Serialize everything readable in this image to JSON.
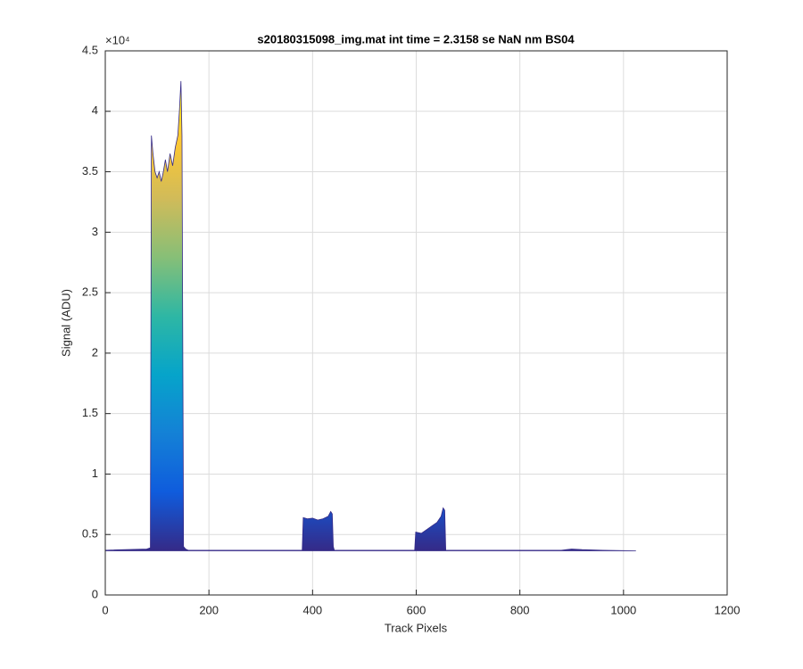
{
  "chart_data": {
    "type": "area",
    "title": "s20180315098_img.mat int time = 2.3158 se  NaN nm BS04",
    "x_label": "Track Pixels",
    "y_label": "Signal (ADU)",
    "y_exponent_label": "×10⁴",
    "x": [
      0,
      80,
      87,
      89,
      92,
      96,
      100,
      104,
      108,
      112,
      116,
      120,
      125,
      130,
      135,
      140,
      143,
      146,
      148,
      151,
      155,
      160,
      380,
      382,
      390,
      400,
      410,
      420,
      430,
      435,
      438,
      440,
      442,
      597,
      599,
      610,
      620,
      630,
      640,
      648,
      652,
      655,
      657,
      880,
      900,
      920,
      960,
      1024
    ],
    "values": [
      3700,
      3800,
      3900,
      38000,
      36500,
      35000,
      34500,
      35000,
      34200,
      35000,
      36000,
      35000,
      36500,
      35500,
      37000,
      38000,
      40000,
      42500,
      38000,
      4000,
      3800,
      3700,
      3700,
      6400,
      6300,
      6350,
      6200,
      6300,
      6500,
      6900,
      6700,
      4000,
      3700,
      3700,
      5200,
      5100,
      5400,
      5700,
      6000,
      6500,
      7200,
      7000,
      3700,
      3700,
      3800,
      3750,
      3700,
      3650
    ],
    "colormap": [
      "#352a87",
      "#0f5cdd",
      "#1481d6",
      "#06a4ca",
      "#2eb7a4",
      "#87bf77",
      "#d1bb59",
      "#fec832",
      "#f9fb0e"
    ],
    "xlim": [
      0,
      1200
    ],
    "xticks": [
      0,
      200,
      400,
      600,
      800,
      1000,
      1200
    ],
    "ylim": [
      0,
      45000
    ],
    "yticks": [
      {
        "value": 0,
        "label": "0"
      },
      {
        "value": 5000,
        "label": "0.5"
      },
      {
        "value": 10000,
        "label": "1"
      },
      {
        "value": 15000,
        "label": "1.5"
      },
      {
        "value": 20000,
        "label": "2"
      },
      {
        "value": 25000,
        "label": "2.5"
      },
      {
        "value": 30000,
        "label": "3"
      },
      {
        "value": 35000,
        "label": "3.5"
      },
      {
        "value": 40000,
        "label": "4"
      },
      {
        "value": 45000,
        "label": "4.5"
      }
    ],
    "grid": true
  }
}
